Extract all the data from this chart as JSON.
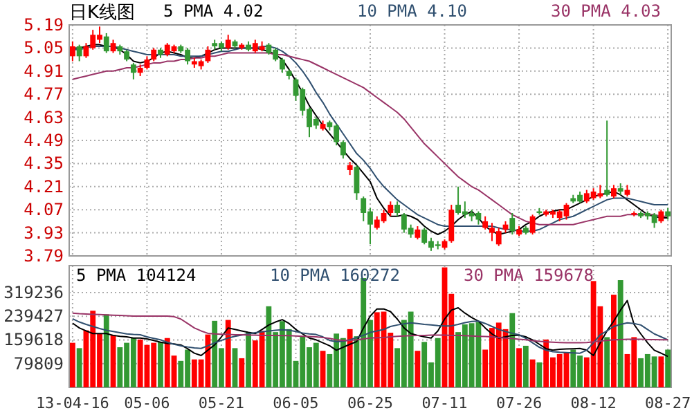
{
  "chart_data": [
    {
      "type": "candlestick",
      "title": "日K线图",
      "legend": "top",
      "grid": true,
      "tick_labels": "y",
      "categories": [
        null,
        null,
        null,
        null,
        null,
        null,
        null,
        null,
        null,
        null,
        null,
        null,
        null,
        null,
        null,
        null,
        null,
        null,
        null,
        null,
        null,
        null,
        null,
        null,
        null,
        null,
        null,
        null,
        null,
        null,
        null,
        null,
        null,
        null,
        null,
        null,
        null,
        null,
        null,
        null,
        null,
        null,
        null,
        null,
        null,
        null,
        null,
        null,
        null,
        null,
        null,
        null,
        null,
        null,
        null,
        null,
        null,
        null,
        null,
        null,
        null,
        null,
        null,
        null,
        null,
        null,
        null,
        null,
        null,
        null,
        null,
        null,
        null,
        null,
        null,
        null,
        null,
        null,
        null,
        null,
        null,
        null,
        null,
        null,
        null,
        null,
        null,
        null,
        null
      ],
      "ylim": [
        3.79,
        5.19
      ],
      "yticks": [
        3.79,
        3.93,
        4.07,
        4.21,
        4.35,
        4.49,
        4.63,
        4.77,
        4.91,
        5.05,
        5.19
      ],
      "ohlc": [
        [
          5.0,
          5.09,
          4.97,
          5.06
        ],
        [
          5.06,
          5.07,
          4.97,
          5.0
        ],
        [
          5.0,
          5.08,
          4.99,
          5.06
        ],
        [
          5.05,
          5.16,
          5.04,
          5.13
        ],
        [
          5.1,
          5.18,
          5.08,
          5.13
        ],
        [
          5.12,
          5.14,
          5.02,
          5.03
        ],
        [
          5.03,
          5.1,
          5.02,
          5.08
        ],
        [
          5.06,
          5.07,
          5.01,
          5.03
        ],
        [
          5.03,
          5.04,
          4.97,
          4.98
        ],
        [
          4.95,
          4.96,
          4.86,
          4.9
        ],
        [
          4.9,
          4.95,
          4.88,
          4.93
        ],
        [
          4.93,
          5.0,
          4.92,
          4.98
        ],
        [
          4.98,
          5.05,
          4.97,
          5.04
        ],
        [
          5.04,
          5.05,
          4.99,
          5.01
        ],
        [
          5.01,
          5.08,
          5.0,
          5.07
        ],
        [
          5.03,
          5.07,
          5.02,
          5.06
        ],
        [
          5.06,
          5.07,
          5.02,
          5.03
        ],
        [
          5.04,
          5.05,
          4.95,
          4.97
        ],
        [
          4.95,
          4.99,
          4.93,
          4.97
        ],
        [
          4.94,
          4.98,
          4.92,
          4.97
        ],
        [
          4.97,
          5.06,
          4.96,
          5.04
        ],
        [
          5.08,
          5.1,
          5.04,
          5.06
        ],
        [
          5.08,
          5.09,
          5.03,
          5.05
        ],
        [
          5.05,
          5.13,
          5.04,
          5.1
        ],
        [
          5.09,
          5.1,
          5.05,
          5.06
        ],
        [
          5.05,
          5.08,
          5.04,
          5.07
        ],
        [
          5.07,
          5.09,
          5.03,
          5.04
        ],
        [
          5.03,
          5.1,
          5.02,
          5.08
        ],
        [
          5.04,
          5.09,
          5.03,
          5.06
        ],
        [
          5.07,
          5.08,
          5.01,
          5.02
        ],
        [
          5.04,
          5.05,
          4.97,
          4.98
        ],
        [
          4.98,
          4.99,
          4.9,
          4.92
        ],
        [
          4.91,
          4.92,
          4.86,
          4.88
        ],
        [
          4.86,
          4.87,
          4.73,
          4.76
        ],
        [
          4.8,
          4.81,
          4.64,
          4.67
        ],
        [
          4.68,
          4.69,
          4.51,
          4.57
        ],
        [
          4.62,
          4.63,
          4.56,
          4.58
        ],
        [
          4.56,
          4.61,
          4.55,
          4.59
        ],
        [
          4.6,
          4.61,
          4.55,
          4.57
        ],
        [
          4.58,
          4.59,
          4.46,
          4.48
        ],
        [
          4.48,
          4.49,
          4.38,
          4.4
        ],
        [
          4.31,
          4.36,
          4.28,
          4.34
        ],
        [
          4.33,
          4.34,
          4.13,
          4.17
        ],
        [
          4.14,
          4.15,
          4.0,
          4.05
        ],
        [
          4.06,
          4.08,
          3.86,
          3.98
        ],
        [
          3.96,
          4.03,
          3.95,
          4.01
        ],
        [
          4.0,
          4.07,
          3.99,
          4.05
        ],
        [
          4.05,
          4.12,
          4.03,
          4.1
        ],
        [
          4.1,
          4.12,
          4.03,
          4.05
        ],
        [
          4.04,
          4.05,
          3.93,
          3.95
        ],
        [
          3.96,
          3.98,
          3.9,
          3.92
        ],
        [
          3.9,
          3.97,
          3.89,
          3.95
        ],
        [
          3.95,
          3.96,
          3.86,
          3.87
        ],
        [
          3.88,
          3.9,
          3.82,
          3.84
        ],
        [
          3.86,
          3.88,
          3.83,
          3.85
        ],
        [
          3.84,
          3.89,
          3.83,
          3.88
        ],
        [
          3.88,
          4.1,
          3.87,
          4.07
        ],
        [
          4.1,
          4.21,
          4.04,
          4.05
        ],
        [
          4.06,
          4.12,
          4.02,
          4.04
        ],
        [
          4.05,
          4.07,
          4.0,
          4.03
        ],
        [
          4.05,
          4.06,
          3.98,
          4.01
        ],
        [
          3.96,
          4.03,
          3.95,
          4.0
        ],
        [
          3.93,
          3.99,
          3.88,
          3.96
        ],
        [
          3.86,
          3.96,
          3.85,
          3.94
        ],
        [
          3.95,
          4.0,
          3.93,
          3.98
        ],
        [
          4.02,
          4.05,
          3.92,
          3.94
        ],
        [
          3.92,
          3.97,
          3.91,
          3.95
        ],
        [
          3.96,
          3.97,
          3.92,
          3.93
        ],
        [
          3.93,
          4.04,
          3.92,
          4.03
        ],
        [
          4.06,
          4.08,
          4.04,
          4.05
        ],
        [
          4.04,
          4.07,
          4.03,
          4.06
        ],
        [
          4.04,
          4.07,
          4.02,
          4.06
        ],
        [
          4.02,
          4.07,
          4.0,
          4.06
        ],
        [
          4.03,
          4.11,
          4.01,
          4.1
        ],
        [
          4.14,
          4.16,
          4.11,
          4.12
        ],
        [
          4.16,
          4.18,
          4.11,
          4.12
        ],
        [
          4.12,
          4.19,
          4.11,
          4.17
        ],
        [
          4.14,
          4.2,
          4.13,
          4.18
        ],
        [
          4.15,
          4.22,
          4.14,
          4.17
        ],
        [
          4.19,
          4.61,
          4.15,
          4.16
        ],
        [
          4.15,
          4.22,
          4.14,
          4.2
        ],
        [
          4.2,
          4.23,
          4.16,
          4.18
        ],
        [
          4.16,
          4.22,
          4.15,
          4.19
        ],
        [
          4.04,
          4.06,
          4.03,
          4.05
        ],
        [
          4.05,
          4.06,
          4.02,
          4.03
        ],
        [
          4.05,
          4.06,
          4.01,
          4.03
        ],
        [
          4.04,
          4.05,
          3.96,
          3.99
        ],
        [
          4.0,
          4.07,
          3.99,
          4.06
        ],
        [
          4.06,
          4.08,
          4.01,
          4.03
        ]
      ],
      "colors": [
        "#ff0000",
        "#339933",
        "#ff0000",
        "#ff0000",
        "#ff0000",
        "#339933",
        "#ff0000",
        "#339933",
        "#339933",
        "#339933",
        "#ff0000",
        "#ff0000",
        "#ff0000",
        "#339933",
        "#ff0000",
        "#ff0000",
        "#339933",
        "#339933",
        "#ff0000",
        "#ff0000",
        "#ff0000",
        "#339933",
        "#339933",
        "#ff0000",
        "#339933",
        "#ff0000",
        "#339933",
        "#ff0000",
        "#ff0000",
        "#339933",
        "#339933",
        "#339933",
        "#339933",
        "#339933",
        "#339933",
        "#339933",
        "#339933",
        "#ff0000",
        "#339933",
        "#339933",
        "#339933",
        "#ff0000",
        "#339933",
        "#339933",
        "#339933",
        "#ff0000",
        "#ff0000",
        "#ff0000",
        "#339933",
        "#339933",
        "#339933",
        "#ff0000",
        "#339933",
        "#339933",
        "#339933",
        "#ff0000",
        "#ff0000",
        "#339933",
        "#339933",
        "#339933",
        "#339933",
        "#ff0000",
        "#ff0000",
        "#ff0000",
        "#ff0000",
        "#339933",
        "#ff0000",
        "#339933",
        "#ff0000",
        "#339933",
        "#ff0000",
        "#ff0000",
        "#ff0000",
        "#ff0000",
        "#339933",
        "#339933",
        "#ff0000",
        "#ff0000",
        "#ff0000",
        "#339933",
        "#ff0000",
        "#339933",
        "#ff0000",
        "#ff0000",
        "#339933",
        "#339933",
        "#339933",
        "#ff0000",
        "#339933"
      ],
      "series": [
        {
          "name": "5 PMA 4.02",
          "type": "line",
          "color": "#000000",
          "values": [
            5.05,
            5.05,
            5.06,
            5.07,
            5.07,
            5.06,
            5.06,
            5.04,
            5.01,
            4.97,
            4.96,
            4.97,
            4.99,
            5.02,
            5.03,
            5.02,
            5.01,
            4.99,
            4.99,
            5.0,
            5.02,
            5.04,
            5.05,
            5.05,
            5.05,
            5.05,
            5.05,
            5.05,
            5.04,
            5.03,
            5.01,
            4.98,
            4.92,
            4.85,
            4.78,
            4.7,
            4.64,
            4.58,
            4.53,
            4.48,
            4.43,
            4.38,
            4.34,
            4.29,
            4.24,
            4.14,
            4.08,
            4.03,
            4.03,
            4.04,
            4.03,
            4.01,
            3.97,
            3.94,
            3.92,
            3.94,
            3.97,
            4.01,
            4.04,
            4.06,
            4.02,
            3.97,
            3.94,
            3.92,
            3.93,
            3.94,
            3.95,
            3.98,
            4.0,
            4.03,
            4.05,
            4.06,
            4.07,
            4.07,
            4.09,
            4.11,
            4.13,
            4.15,
            4.16,
            4.17,
            4.18,
            4.16,
            4.13,
            4.1,
            4.07,
            4.04,
            4.03,
            4.02,
            4.02
          ]
        },
        {
          "name": "10 PMA 4.10",
          "type": "line",
          "color": "#2f4f6f",
          "values": [
            5.04,
            5.04,
            5.05,
            5.06,
            5.06,
            5.06,
            5.06,
            5.05,
            5.04,
            5.03,
            5.02,
            5.01,
            5.01,
            5.01,
            5.01,
            5.01,
            5.0,
            5.0,
            5.0,
            5.0,
            5.01,
            5.02,
            5.03,
            5.03,
            5.04,
            5.05,
            5.05,
            5.05,
            5.06,
            5.06,
            5.05,
            5.03,
            5.0,
            4.96,
            4.91,
            4.85,
            4.78,
            4.72,
            4.65,
            4.59,
            4.53,
            4.47,
            4.41,
            4.37,
            4.32,
            4.26,
            4.21,
            4.17,
            4.13,
            4.1,
            4.07,
            4.04,
            4.02,
            4.0,
            3.98,
            3.97,
            3.97,
            3.97,
            3.97,
            3.97,
            3.97,
            3.97,
            3.97,
            3.96,
            3.95,
            3.95,
            3.94,
            3.94,
            3.94,
            3.95,
            3.97,
            3.99,
            4.01,
            4.02,
            4.03,
            4.05,
            4.07,
            4.09,
            4.11,
            4.13,
            4.14,
            4.14,
            4.14,
            4.13,
            4.12,
            4.11,
            4.1,
            4.1,
            4.1
          ]
        },
        {
          "name": "30 PMA 4.03",
          "type": "line",
          "color": "#993366",
          "values": [
            4.86,
            4.87,
            4.88,
            4.89,
            4.9,
            4.91,
            4.91,
            4.92,
            4.93,
            4.93,
            4.94,
            4.95,
            4.96,
            4.96,
            4.97,
            4.97,
            4.98,
            4.98,
            4.99,
            4.99,
            5.0,
            5.0,
            5.01,
            5.02,
            5.02,
            5.02,
            5.02,
            5.02,
            5.02,
            5.02,
            5.01,
            5.01,
            5.0,
            4.99,
            4.98,
            4.97,
            4.95,
            4.93,
            4.91,
            4.89,
            4.87,
            4.85,
            4.83,
            4.81,
            4.78,
            4.75,
            4.72,
            4.69,
            4.66,
            4.62,
            4.57,
            4.52,
            4.47,
            4.43,
            4.39,
            4.35,
            4.31,
            4.27,
            4.24,
            4.21,
            4.19,
            4.16,
            4.13,
            4.1,
            4.07,
            4.04,
            4.02,
            4.0,
            3.99,
            3.98,
            3.98,
            3.98,
            3.98,
            3.98,
            3.98,
            3.99,
            4.0,
            4.01,
            4.02,
            4.03,
            4.03,
            4.03,
            4.04,
            4.04,
            4.04,
            4.04,
            4.04,
            4.03,
            4.03
          ]
        }
      ]
    },
    {
      "type": "bar",
      "legend": "top",
      "grid": true,
      "categories": [
        "13-04-16",
        null,
        null,
        null,
        null,
        null,
        null,
        null,
        null,
        null,
        null,
        "05-06",
        null,
        null,
        null,
        null,
        null,
        null,
        null,
        null,
        null,
        null,
        "05-21",
        null,
        null,
        null,
        null,
        null,
        null,
        null,
        null,
        null,
        null,
        "06-05",
        null,
        null,
        null,
        null,
        null,
        null,
        null,
        null,
        null,
        null,
        "06-25",
        null,
        null,
        null,
        null,
        null,
        null,
        null,
        null,
        null,
        null,
        "07-11",
        null,
        null,
        null,
        null,
        null,
        null,
        null,
        null,
        null,
        null,
        "07-26",
        null,
        null,
        null,
        null,
        null,
        null,
        null,
        null,
        null,
        null,
        "08-12",
        null,
        null,
        null,
        null,
        null,
        null,
        null,
        null,
        null,
        null,
        "08-27"
      ],
      "ylim": [
        0,
        410000
      ],
      "yticks": [
        79809,
        159618,
        239427,
        319236
      ],
      "series": [
        {
          "type": "bar",
          "values": [
            150000,
            132000,
            192000,
            258000,
            181000,
            246000,
            176000,
            135000,
            150000,
            166000,
            161000,
            143000,
            150000,
            153000,
            166000,
            107000,
            89000,
            127000,
            94000,
            94000,
            178000,
            224000,
            132000,
            227000,
            132000,
            98000,
            186000,
            158000,
            190000,
            273000,
            186000,
            223000,
            196000,
            89000,
            173000,
            135000,
            150000,
            123000,
            112000,
            181000,
            166000,
            196000,
            172000,
            368000,
            227000,
            253000,
            255000,
            184000,
            132000,
            227000,
            255000,
            123000,
            153000,
            84000,
            166000,
            404000,
            315000,
            186000,
            212000,
            216000,
            220000,
            127000,
            200000,
            218000,
            196000,
            250000,
            132000,
            140000,
            94000,
            84000,
            161000,
            101000,
            112000,
            117000,
            127000,
            107000,
            101000,
            358000,
            273000,
            169000,
            312000,
            361000,
            112000,
            169000,
            98000,
            112000,
            104000,
            104000,
            127000
          ],
          "colors": [
            "#ff0000",
            "#339933",
            "#ff0000",
            "#ff0000",
            "#ff0000",
            "#339933",
            "#ff0000",
            "#339933",
            "#339933",
            "#339933",
            "#ff0000",
            "#ff0000",
            "#ff0000",
            "#339933",
            "#ff0000",
            "#ff0000",
            "#339933",
            "#339933",
            "#ff0000",
            "#ff0000",
            "#ff0000",
            "#339933",
            "#339933",
            "#ff0000",
            "#339933",
            "#ff0000",
            "#339933",
            "#ff0000",
            "#ff0000",
            "#339933",
            "#339933",
            "#339933",
            "#339933",
            "#339933",
            "#339933",
            "#339933",
            "#339933",
            "#ff0000",
            "#339933",
            "#339933",
            "#339933",
            "#ff0000",
            "#339933",
            "#339933",
            "#339933",
            "#ff0000",
            "#ff0000",
            "#ff0000",
            "#339933",
            "#339933",
            "#339933",
            "#ff0000",
            "#339933",
            "#339933",
            "#339933",
            "#ff0000",
            "#ff0000",
            "#339933",
            "#339933",
            "#339933",
            "#339933",
            "#ff0000",
            "#ff0000",
            "#ff0000",
            "#ff0000",
            "#339933",
            "#ff0000",
            "#339933",
            "#ff0000",
            "#339933",
            "#ff0000",
            "#ff0000",
            "#ff0000",
            "#ff0000",
            "#339933",
            "#339933",
            "#ff0000",
            "#ff0000",
            "#ff0000",
            "#339933",
            "#ff0000",
            "#339933",
            "#ff0000",
            "#ff0000",
            "#339933",
            "#339933",
            "#339933",
            "#ff0000",
            "#339933"
          ]
        },
        {
          "name": "5 PMA 104124",
          "type": "line",
          "color": "#000000",
          "values": [
            216000,
            200000,
            190000,
            181000,
            181000,
            181000,
            175000,
            172000,
            170000,
            166000,
            166000,
            163000,
            158000,
            152000,
            148000,
            146000,
            143000,
            130000,
            115000,
            107000,
            125000,
            143000,
            170000,
            200000,
            195000,
            190000,
            185000,
            181000,
            195000,
            210000,
            220000,
            228000,
            215000,
            195000,
            180000,
            166000,
            160000,
            150000,
            140000,
            125000,
            135000,
            145000,
            154000,
            200000,
            240000,
            264000,
            264000,
            255000,
            230000,
            200000,
            181000,
            175000,
            170000,
            166000,
            190000,
            230000,
            260000,
            268000,
            250000,
            235000,
            223000,
            200000,
            180000,
            166000,
            170000,
            175000,
            176000,
            170000,
            160000,
            145000,
            130000,
            125000,
            128000,
            129000,
            130000,
            131000,
            125000,
            107000,
            150000,
            190000,
            223000,
            260000,
            292000,
            212000,
            180000,
            150000,
            125000,
            115000,
            104000
          ]
        },
        {
          "name": "10 PMA 160272",
          "type": "line",
          "color": "#2f4f6f",
          "values": [
            231000,
            220000,
            212000,
            205000,
            198000,
            192000,
            188000,
            184000,
            180000,
            178000,
            177000,
            170000,
            165000,
            160000,
            152000,
            145000,
            140000,
            136000,
            133000,
            131000,
            140000,
            150000,
            158000,
            166000,
            172000,
            176000,
            180000,
            184000,
            187000,
            190000,
            192000,
            194000,
            192000,
            188000,
            183000,
            180000,
            178000,
            170000,
            158000,
            154000,
            155000,
            160000,
            168000,
            175000,
            185000,
            190000,
            195000,
            205000,
            210000,
            214000,
            217000,
            215000,
            212000,
            210000,
            208000,
            207000,
            207000,
            212000,
            218000,
            222000,
            223000,
            215000,
            205000,
            195000,
            188000,
            182000,
            177000,
            165000,
            150000,
            135000,
            125000,
            120000,
            118000,
            117000,
            116000,
            115000,
            125000,
            150000,
            177000,
            190000,
            205000,
            212000,
            217000,
            215000,
            210000,
            195000,
            180000,
            170000,
            160000
          ]
        },
        {
          "name": "30 PMA 159678",
          "type": "line",
          "color": "#993366",
          "values": [
            250000,
            248000,
            247000,
            246000,
            245000,
            244000,
            243000,
            242000,
            241000,
            240000,
            240000,
            240000,
            240000,
            240000,
            240000,
            238000,
            230000,
            215000,
            200000,
            190000,
            182000,
            180000,
            179000,
            178000,
            177000,
            177000,
            176000,
            176000,
            175000,
            175000,
            175000,
            174000,
            174000,
            173000,
            172000,
            171000,
            170000,
            168000,
            165000,
            160000,
            158000,
            158000,
            160000,
            163000,
            166000,
            167000,
            168000,
            170000,
            172000,
            173000,
            174000,
            175000,
            175000,
            176000,
            176000,
            176000,
            175000,
            175000,
            174000,
            173000,
            172000,
            171000,
            170000,
            168000,
            166000,
            164000,
            162000,
            160000,
            157000,
            155000,
            153000,
            152000,
            151000,
            150000,
            150000,
            150000,
            151000,
            153000,
            156000,
            158000,
            160000,
            161000,
            162000,
            162000,
            162000,
            161000,
            161000,
            160000,
            160000
          ]
        }
      ]
    }
  ]
}
